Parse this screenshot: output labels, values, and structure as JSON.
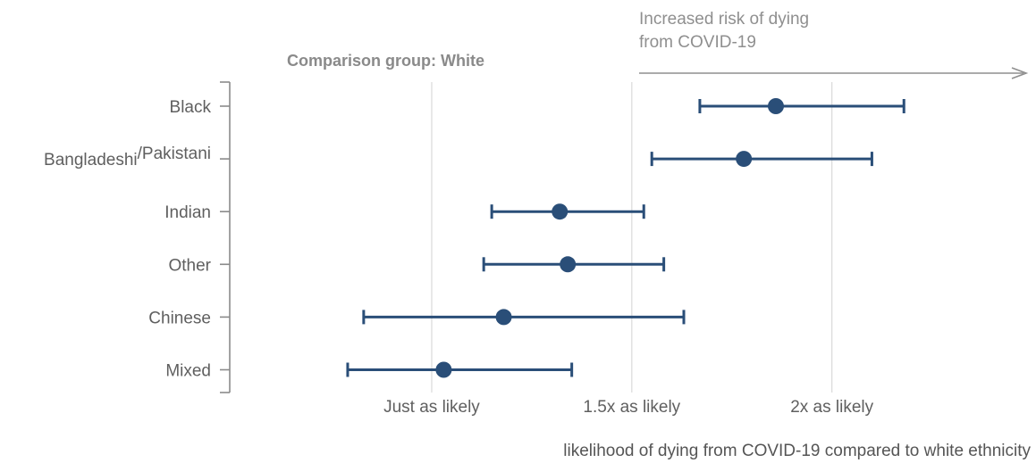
{
  "chart_data": {
    "type": "scatter",
    "subtype": "forest-plot",
    "comparison_label": "Comparison group: White",
    "risk_annotation": [
      "Increased risk of dying",
      "from COVID-19"
    ],
    "xlabel": "likelihood of dying from COVID-19 compared to white ethnicity",
    "x_ticks": [
      {
        "value": 1.0,
        "label": "Just as likely"
      },
      {
        "value": 1.5,
        "label": "1.5x as likely"
      },
      {
        "value": 2.0,
        "label": "2x as likely"
      }
    ],
    "xlim": [
      0.55,
      2.5
    ],
    "grid": true,
    "colors": {
      "marker": "#2a4e78",
      "grid": "#dcdcdc",
      "axis": "#8a8a8a"
    },
    "categories": [
      {
        "label": "Black",
        "estimate": 1.86,
        "lower": 1.67,
        "upper": 2.18
      },
      {
        "label_main": "Bangladeshi",
        "label_super": "/Pakistani",
        "estimate": 1.78,
        "lower": 1.55,
        "upper": 2.1
      },
      {
        "label": "Indian",
        "estimate": 1.32,
        "lower": 1.15,
        "upper": 1.53
      },
      {
        "label": "Other",
        "estimate": 1.34,
        "lower": 1.13,
        "upper": 1.58
      },
      {
        "label": "Chinese",
        "estimate": 1.18,
        "lower": 0.83,
        "upper": 1.63
      },
      {
        "label": "Mixed",
        "estimate": 1.03,
        "lower": 0.79,
        "upper": 1.35
      }
    ]
  }
}
